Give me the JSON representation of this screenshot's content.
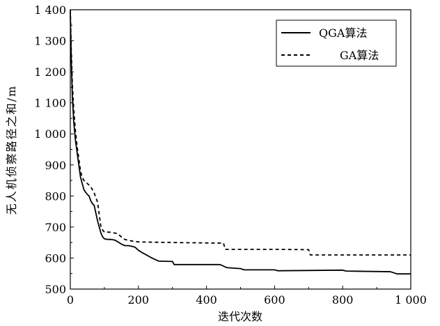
{
  "chart_data": {
    "type": "line",
    "xlabel": "迭代次数",
    "ylabel": "无人机侦察路径之和/m",
    "xlim": [
      0,
      1000
    ],
    "ylim": [
      500,
      1400
    ],
    "xticks": [
      0,
      200,
      400,
      600,
      800,
      1000
    ],
    "xtick_labels": [
      "0",
      "200",
      "400",
      "600",
      "800",
      "1 000"
    ],
    "yticks": [
      500,
      600,
      700,
      800,
      900,
      1000,
      1100,
      1200,
      1300,
      1400
    ],
    "ytick_labels": [
      "500",
      "600",
      "700",
      "800",
      "900",
      "1 000",
      "1 100",
      "1 200",
      "1 300",
      "1 400"
    ],
    "grid": false,
    "legend_position": "top-right",
    "series": [
      {
        "name": "QGA算法",
        "style": "solid",
        "color": "#000000",
        "points": [
          [
            0,
            1390
          ],
          [
            3,
            1230
          ],
          [
            6,
            1120
          ],
          [
            10,
            1040
          ],
          [
            15,
            980
          ],
          [
            20,
            940
          ],
          [
            25,
            900
          ],
          [
            30,
            860
          ],
          [
            35,
            840
          ],
          [
            40,
            820
          ],
          [
            45,
            812
          ],
          [
            50,
            805
          ],
          [
            55,
            800
          ],
          [
            60,
            785
          ],
          [
            65,
            775
          ],
          [
            70,
            770
          ],
          [
            75,
            745
          ],
          [
            80,
            720
          ],
          [
            85,
            700
          ],
          [
            90,
            680
          ],
          [
            95,
            668
          ],
          [
            100,
            662
          ],
          [
            110,
            660
          ],
          [
            120,
            660
          ],
          [
            130,
            658
          ],
          [
            140,
            652
          ],
          [
            150,
            645
          ],
          [
            160,
            640
          ],
          [
            170,
            640
          ],
          [
            180,
            638
          ],
          [
            190,
            635
          ],
          [
            200,
            625
          ],
          [
            210,
            618
          ],
          [
            220,
            612
          ],
          [
            230,
            606
          ],
          [
            240,
            600
          ],
          [
            250,
            595
          ],
          [
            260,
            590
          ],
          [
            300,
            589
          ],
          [
            305,
            579
          ],
          [
            440,
            579
          ],
          [
            450,
            574
          ],
          [
            460,
            569
          ],
          [
            500,
            566
          ],
          [
            510,
            562
          ],
          [
            600,
            562
          ],
          [
            610,
            559
          ],
          [
            800,
            561
          ],
          [
            810,
            558
          ],
          [
            940,
            556
          ],
          [
            960,
            549
          ],
          [
            1000,
            549
          ]
        ]
      },
      {
        "name": "GA算法",
        "style": "dashed",
        "color": "#000000",
        "points": [
          [
            0,
            1400
          ],
          [
            3,
            1260
          ],
          [
            6,
            1160
          ],
          [
            10,
            1080
          ],
          [
            15,
            1010
          ],
          [
            20,
            960
          ],
          [
            25,
            920
          ],
          [
            30,
            880
          ],
          [
            35,
            860
          ],
          [
            40,
            850
          ],
          [
            50,
            840
          ],
          [
            60,
            830
          ],
          [
            70,
            810
          ],
          [
            80,
            780
          ],
          [
            85,
            740
          ],
          [
            90,
            700
          ],
          [
            95,
            690
          ],
          [
            100,
            684
          ],
          [
            120,
            683
          ],
          [
            140,
            678
          ],
          [
            150,
            668
          ],
          [
            160,
            660
          ],
          [
            180,
            655
          ],
          [
            200,
            652
          ],
          [
            300,
            650
          ],
          [
            450,
            648
          ],
          [
            455,
            628
          ],
          [
            600,
            628
          ],
          [
            700,
            627
          ],
          [
            705,
            610
          ],
          [
            900,
            610
          ],
          [
            1000,
            610
          ]
        ]
      }
    ]
  }
}
